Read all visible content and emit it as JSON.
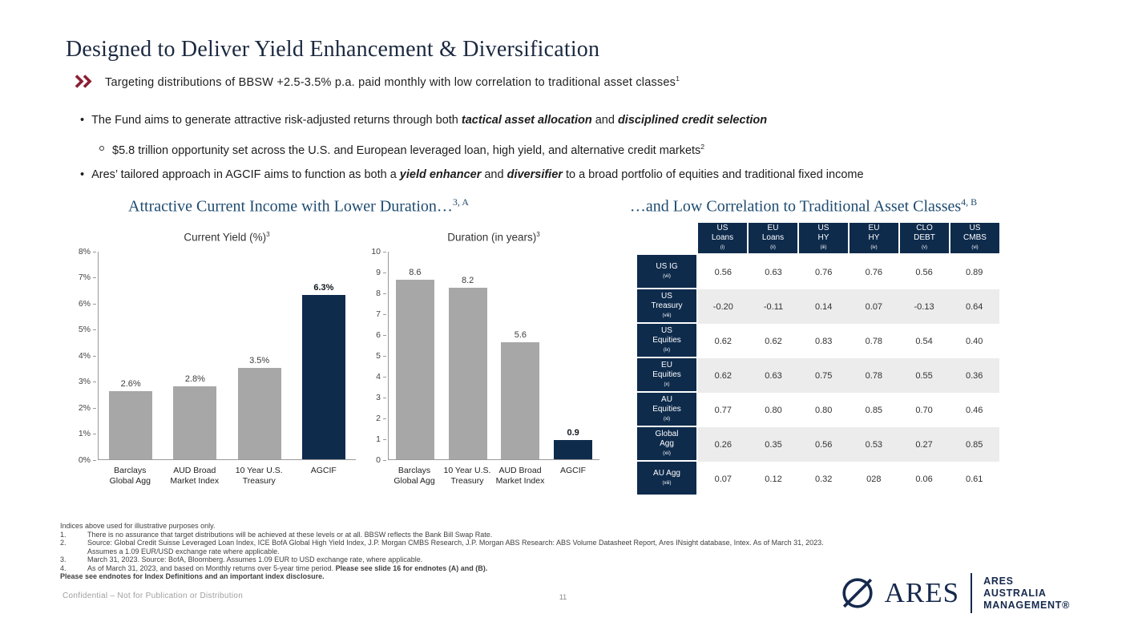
{
  "page": {
    "title": "Designed to Deliver Yield Enhancement & Diversification",
    "tagline": "Targeting distributions of BBSW +2.5-3.5% p.a. paid monthly with low correlation to traditional asset classes",
    "tagline_sup": "1"
  },
  "bullets": {
    "b1_pre": "The Fund aims to generate attractive risk-adjusted returns through both ",
    "b1_em1": "tactical asset allocation",
    "b1_mid": " and ",
    "b1_em2": "disciplined credit selection",
    "sub1": "$5.8 trillion opportunity set across the U.S. and European leveraged loan, high yield, and alternative credit markets",
    "sub1_sup": "2",
    "b2_pre": "Ares’ tailored approach in AGCIF aims to function as both a ",
    "b2_em1": "yield enhancer",
    "b2_mid": " and ",
    "b2_em2": "diversifier",
    "b2_post": " to a broad portfolio of equities and traditional fixed income"
  },
  "sections": {
    "left": {
      "heading": "Attractive Current Income with Lower Duration…",
      "sup": "3, A"
    },
    "right": {
      "heading": "…and Low Correlation to Traditional Asset Classes",
      "sup": "4, B"
    }
  },
  "chart_data": [
    {
      "type": "bar",
      "title": "Current Yield (%)",
      "title_sup": "3",
      "categories": [
        "Barclays\nGlobal Agg",
        "AUD Broad\nMarket Index",
        "10 Year U.S.\nTreasury",
        "AGCIF"
      ],
      "values": [
        2.6,
        2.8,
        3.5,
        6.3
      ],
      "labels": [
        "2.6%",
        "2.8%",
        "3.5%",
        "6.3%"
      ],
      "ylim": [
        0,
        8
      ],
      "yticks": [
        "0%",
        "1%",
        "2%",
        "3%",
        "4%",
        "5%",
        "6%",
        "7%",
        "8%"
      ],
      "highlight_index": 3,
      "bar_color": "#a7a7a7",
      "highlight_color": "#0e2b4c",
      "grid": false,
      "legend": false
    },
    {
      "type": "bar",
      "title": "Duration (in years)",
      "title_sup": "3",
      "categories": [
        "Barclays\nGlobal Agg",
        "10 Year U.S.\nTreasury",
        "AUD Broad\nMarket Index",
        "AGCIF"
      ],
      "values": [
        8.6,
        8.2,
        5.6,
        0.9
      ],
      "labels": [
        "8.6",
        "8.2",
        "5.6",
        "0.9"
      ],
      "ylim": [
        0,
        10
      ],
      "yticks": [
        "0",
        "1",
        "2",
        "3",
        "4",
        "5",
        "6",
        "7",
        "8",
        "9",
        "10"
      ],
      "highlight_index": 3,
      "bar_color": "#a7a7a7",
      "highlight_color": "#0e2b4c",
      "grid": false,
      "legend": false
    },
    {
      "type": "table",
      "title": "Correlation to Traditional Asset Classes",
      "columns": [
        {
          "l1": "US",
          "l2": "Loans",
          "sup": "(i)"
        },
        {
          "l1": "EU",
          "l2": "Loans",
          "sup": "(ii)"
        },
        {
          "l1": "US",
          "l2": "HY",
          "sup": "(iii)"
        },
        {
          "l1": "EU",
          "l2": "HY",
          "sup": "(iv)"
        },
        {
          "l1": "CLO",
          "l2": "DEBT",
          "sup": "(v)"
        },
        {
          "l1": "US",
          "l2": "CMBS",
          "sup": "(vi)"
        }
      ],
      "rows": [
        {
          "label": [
            "US IG"
          ],
          "sup": "(vii)",
          "values": [
            "0.56",
            "0.63",
            "0.76",
            "0.76",
            "0.56",
            "0.89"
          ]
        },
        {
          "label": [
            "US",
            "Treasury"
          ],
          "sup": "(viii)",
          "values": [
            "-0.20",
            "-0.11",
            "0.14",
            "0.07",
            "-0.13",
            "0.64"
          ]
        },
        {
          "label": [
            "US",
            "Equities"
          ],
          "sup": "(ix)",
          "values": [
            "0.62",
            "0.62",
            "0.83",
            "0.78",
            "0.54",
            "0.40"
          ]
        },
        {
          "label": [
            "EU",
            "Equities"
          ],
          "sup": "(x)",
          "values": [
            "0.62",
            "0.63",
            "0.75",
            "0.78",
            "0.55",
            "0.36"
          ]
        },
        {
          "label": [
            "AU",
            "Equities"
          ],
          "sup": "(xi)",
          "values": [
            "0.77",
            "0.80",
            "0.80",
            "0.85",
            "0.70",
            "0.46"
          ]
        },
        {
          "label": [
            "Global",
            "Agg"
          ],
          "sup": "(xii)",
          "values": [
            "0.26",
            "0.35",
            "0.56",
            "0.53",
            "0.27",
            "0.85"
          ]
        },
        {
          "label": [
            "AU Agg"
          ],
          "sup": "(xiii)",
          "values": [
            "0.07",
            "0.12",
            "0.32",
            "028",
            "0.06",
            "0.61"
          ]
        }
      ]
    }
  ],
  "footnotes": {
    "intro": "Indices above used for illustrative purposes only.",
    "items": [
      {
        "num": "1.",
        "text": "There is no assurance that target distributions will be achieved at these levels or at all. BBSW reflects the Bank Bill Swap Rate."
      },
      {
        "num": "2.",
        "text": "Source: Global Credit Suisse Leveraged Loan Index, ICE BofA Global High Yield Index, J.P. Morgan CMBS Research, J.P. Morgan ABS Research: ABS Volume Datasheet Report, Ares INsight database, Intex. As of March 31, 2023."
      },
      {
        "num": "",
        "text": "Assumes a 1.09 EUR/USD exchange rate where applicable."
      },
      {
        "num": "3.",
        "text": "March 31, 2023. Source: BofA, Bloomberg. Assumes 1.09 EUR to USD exchange rate, where applicable."
      },
      {
        "num": "4.",
        "text": "As of March 31, 2023, and based on Monthly returns over 5-year time period.  ",
        "bold_text": "Please see slide 16 for endnotes (A) and (B)."
      }
    ],
    "closing": "Please see endnotes for Index Definitions and an important index disclosure."
  },
  "footer": {
    "confidential": "Confidential – Not for Publication or Distribution",
    "page_number": "11"
  },
  "logo": {
    "brand": "ARES",
    "sub1": "ARES",
    "sub2": "AUSTRALIA",
    "sub3": "MANAGEMENT®"
  },
  "colors": {
    "navy": "#0e2b4c",
    "heading_blue": "#1e4b70",
    "bar_gray": "#a7a7a7",
    "accent_chevron": "#8b1f32",
    "stripe": "#ececec"
  }
}
